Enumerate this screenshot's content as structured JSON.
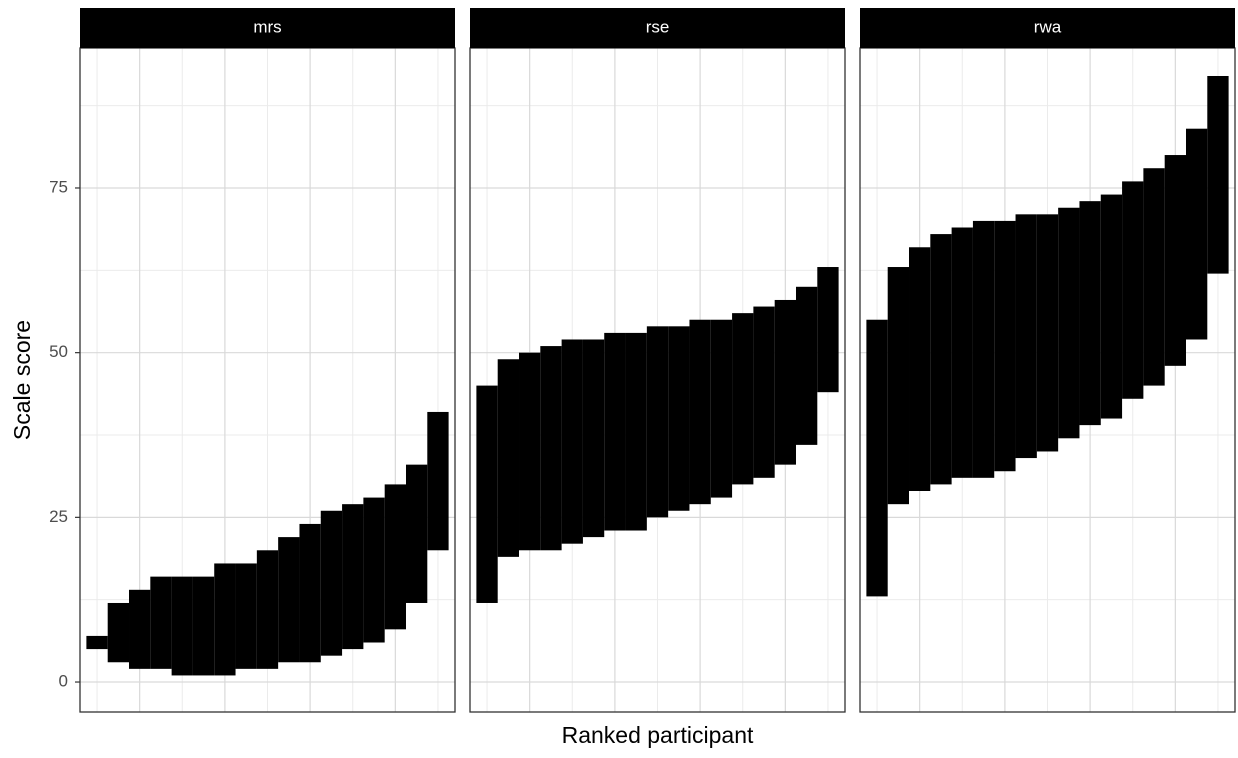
{
  "chart_data": [
    {
      "type": "range",
      "title": "mrs",
      "ylabel": "Scale score",
      "x": [
        0,
        0.5,
        1,
        1.5,
        2,
        2.5,
        3,
        3.5,
        4,
        4.5,
        5,
        5.5,
        6,
        6.5,
        7,
        7.5,
        8
      ],
      "low": [
        5,
        3,
        2,
        2,
        1,
        1,
        1,
        2,
        2,
        3,
        3,
        4,
        5,
        6,
        8,
        12,
        20
      ],
      "high": [
        7,
        12,
        14,
        16,
        16,
        16,
        18,
        18,
        20,
        22,
        24,
        26,
        27,
        28,
        30,
        33,
        41
      ],
      "color": "#000000",
      "xlim": [
        -0.4,
        8.4
      ],
      "xticks": [
        1,
        3,
        5,
        7
      ],
      "xminor": [
        0,
        2,
        4,
        6,
        8
      ],
      "ylim": [
        -4.55,
        96.25
      ],
      "yticks": [
        0,
        25,
        50,
        75
      ],
      "yminor": [
        12.5,
        37.5,
        62.5,
        87.5
      ],
      "grid": true
    },
    {
      "type": "range",
      "title": "rse",
      "xlabel": "Ranked participant",
      "x": [
        0,
        0.5,
        1,
        1.5,
        2,
        2.5,
        3,
        3.5,
        4,
        4.5,
        5,
        5.5,
        6,
        6.5,
        7,
        7.5,
        8
      ],
      "low": [
        12,
        19,
        20,
        20,
        21,
        22,
        23,
        23,
        25,
        26,
        27,
        28,
        30,
        31,
        33,
        36,
        44
      ],
      "high": [
        45,
        49,
        50,
        51,
        52,
        52,
        53,
        53,
        54,
        54,
        55,
        55,
        56,
        57,
        58,
        60,
        63
      ],
      "color": "#000000",
      "xlim": [
        -0.4,
        8.4
      ],
      "xticks": [
        1,
        3,
        5,
        7
      ],
      "xminor": [
        0,
        2,
        4,
        6,
        8
      ],
      "ylim": [
        -4.55,
        96.25
      ],
      "yticks": [
        0,
        25,
        50,
        75
      ],
      "yminor": [
        12.5,
        37.5,
        62.5,
        87.5
      ],
      "grid": true
    },
    {
      "type": "range",
      "title": "rwa",
      "x": [
        0,
        0.5,
        1,
        1.5,
        2,
        2.5,
        3,
        3.5,
        4,
        4.5,
        5,
        5.5,
        6,
        6.5,
        7,
        7.5,
        8
      ],
      "low": [
        13,
        27,
        29,
        30,
        31,
        31,
        32,
        34,
        35,
        37,
        39,
        40,
        43,
        45,
        48,
        52,
        62
      ],
      "high": [
        55,
        63,
        66,
        68,
        69,
        70,
        70,
        71,
        71,
        72,
        73,
        74,
        76,
        78,
        80,
        84,
        92
      ],
      "color": "#000000",
      "xlim": [
        -0.4,
        8.4
      ],
      "xticks": [
        1,
        3,
        5,
        7
      ],
      "xminor": [
        0,
        2,
        4,
        6,
        8
      ],
      "ylim": [
        -4.55,
        96.25
      ],
      "yticks": [
        0,
        25,
        50,
        75
      ],
      "yminor": [
        12.5,
        37.5,
        62.5,
        87.5
      ],
      "grid": true
    }
  ]
}
